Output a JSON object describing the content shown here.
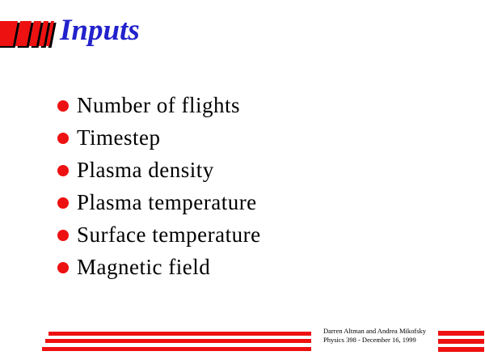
{
  "slide": {
    "title": "Inputs"
  },
  "bullets": [
    {
      "label": "Number of flights"
    },
    {
      "label": "Timestep"
    },
    {
      "label": "Plasma density"
    },
    {
      "label": "Plasma temperature"
    },
    {
      "label": "Surface temperature"
    },
    {
      "label": "Magnetic field"
    }
  ],
  "footer": {
    "line1": "Darren Altman and Andrea Mikofsky",
    "line2": "Physics 398 - December 16, 1999"
  },
  "icons": {
    "logo": "red-slanted-bars",
    "bullet": "filled-red-circle"
  },
  "colors": {
    "accent_red": "#ee1111",
    "title_blue": "#2222cc",
    "text_black": "#000000",
    "background": "#ffffff"
  }
}
